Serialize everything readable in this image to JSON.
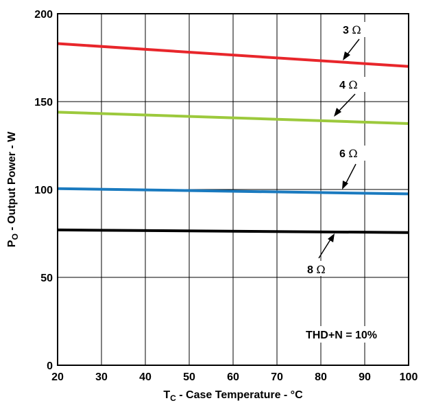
{
  "chart_data": {
    "type": "line",
    "xlabel_main": "T",
    "xlabel_sub": "C",
    "xlabel_rest": " - Case Temperature - °C",
    "ylabel_main": "P",
    "ylabel_sub": "O",
    "ylabel_rest": " - Output Power - W",
    "xlim": [
      20,
      100
    ],
    "ylim": [
      0,
      200
    ],
    "x_ticks": [
      "20",
      "30",
      "40",
      "50",
      "60",
      "70",
      "80",
      "90",
      "100"
    ],
    "y_ticks": [
      "0",
      "50",
      "100",
      "150",
      "200"
    ],
    "grid": true,
    "annotation": "THD+N = 10%",
    "series": [
      {
        "name": "3 Ω",
        "label_num": "3",
        "label_unit": "Ω",
        "color": "#e8262b",
        "x": [
          20,
          100
        ],
        "y": [
          183,
          170
        ]
      },
      {
        "name": "4 Ω",
        "label_num": "4",
        "label_unit": "Ω",
        "color": "#9cc93c",
        "x": [
          20,
          100
        ],
        "y": [
          144,
          137.5
        ]
      },
      {
        "name": "6 Ω",
        "label_num": "6",
        "label_unit": "Ω",
        "color": "#1a7abf",
        "x": [
          20,
          100
        ],
        "y": [
          100.5,
          97.5
        ]
      },
      {
        "name": "8 Ω",
        "label_num": "8",
        "label_unit": "Ω",
        "color": "#000000",
        "x": [
          20,
          100
        ],
        "y": [
          77,
          75.5
        ]
      }
    ]
  }
}
